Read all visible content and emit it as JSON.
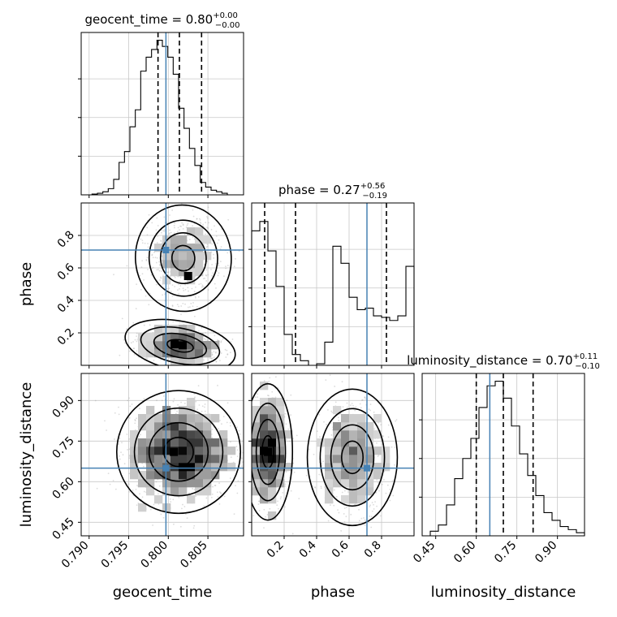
{
  "colors": {
    "truth": "#4682b4",
    "hist": "#000000",
    "grid": "#c8c8c8",
    "scatter": "#9a9a9a"
  },
  "chart_data": {
    "type": "corner",
    "grid": true,
    "truths": {
      "geocent_time": 0.7997,
      "phase": 0.71,
      "luminosity_distance": 0.65
    },
    "params": [
      {
        "key": "geocent_time",
        "label": "geocent_time",
        "title": {
          "name": "geocent_time",
          "median": "0.80",
          "plus": "+0.00",
          "minus": "−0.00"
        },
        "range": [
          0.789,
          0.8095
        ],
        "ticks": [
          0.79,
          0.795,
          0.8,
          0.805
        ],
        "tick_labels": [
          "0.790",
          "0.795",
          "0.800",
          "0.805"
        ],
        "quantiles": [
          0.7987,
          0.8014,
          0.8042
        ],
        "hist": [
          0.0,
          0.0,
          0.005,
          0.01,
          0.02,
          0.04,
          0.1,
          0.21,
          0.28,
          0.44,
          0.55,
          0.8,
          0.89,
          0.94,
          1.0,
          0.96,
          0.89,
          0.78,
          0.56,
          0.43,
          0.3,
          0.19,
          0.08,
          0.05,
          0.03,
          0.02,
          0.01,
          0.0,
          0.0,
          0.0
        ]
      },
      {
        "key": "phase",
        "label": "phase",
        "title": {
          "name": "phase",
          "median": "0.27",
          "plus": "+0.56",
          "minus": "−0.19"
        },
        "range": [
          0.0,
          1.0
        ],
        "ticks": [
          0.2,
          0.4,
          0.6,
          0.8
        ],
        "tick_labels": [
          "0.2",
          "0.4",
          "0.6",
          "0.8"
        ],
        "quantiles": [
          0.08,
          0.27,
          0.83
        ],
        "hist": [
          0.87,
          0.93,
          0.74,
          0.51,
          0.2,
          0.07,
          0.03,
          0.0,
          0.01,
          0.15,
          0.77,
          0.66,
          0.44,
          0.36,
          0.37,
          0.32,
          0.31,
          0.29,
          0.32,
          0.64
        ]
      },
      {
        "key": "luminosity_distance",
        "label": "luminosity_distance",
        "title": {
          "name": "luminosity_distance",
          "median": "0.70",
          "plus": "+0.11",
          "minus": "−0.10"
        },
        "range": [
          0.4,
          1.0
        ],
        "ticks": [
          0.45,
          0.6,
          0.75,
          0.9
        ],
        "tick_labels": [
          "0.45",
          "0.60",
          "0.75",
          "0.90"
        ],
        "quantiles": [
          0.6,
          0.7,
          0.81
        ],
        "hist": [
          0.0,
          0.03,
          0.07,
          0.2,
          0.37,
          0.5,
          0.63,
          0.83,
          0.97,
          1.0,
          0.89,
          0.71,
          0.53,
          0.39,
          0.26,
          0.15,
          0.1,
          0.06,
          0.04,
          0.02
        ]
      }
    ],
    "pairs": [
      {
        "x": "geocent_time",
        "y": "phase",
        "modes": [
          {
            "cx": 0.8015,
            "cy": 0.12,
            "sx": 0.0028,
            "sy": 0.06,
            "w": 0.55,
            "rot": -0.55
          },
          {
            "cx": 0.8019,
            "cy": 0.66,
            "sx": 0.0024,
            "sy": 0.13,
            "w": 0.45,
            "rot": 0.25
          }
        ],
        "hot": [
          [
            0.8008,
            0.13
          ],
          [
            0.8025,
            0.55
          ]
        ]
      },
      {
        "x": "geocent_time",
        "y": "luminosity_distance",
        "modes": [
          {
            "cx": 0.8013,
            "cy": 0.71,
            "sx": 0.0031,
            "sy": 0.09,
            "w": 1.0,
            "rot": 0.0
          }
        ],
        "hot": [
          [
            0.8007,
            0.71
          ]
        ]
      },
      {
        "x": "phase",
        "y": "luminosity_distance",
        "modes": [
          {
            "cx": 0.1,
            "cy": 0.71,
            "sx": 0.06,
            "sy": 0.1,
            "w": 0.55,
            "rot": 0.0
          },
          {
            "cx": 0.62,
            "cy": 0.69,
            "sx": 0.11,
            "sy": 0.1,
            "w": 0.45,
            "rot": 0.0
          }
        ],
        "hot": [
          [
            0.1,
            0.71
          ]
        ]
      }
    ]
  }
}
